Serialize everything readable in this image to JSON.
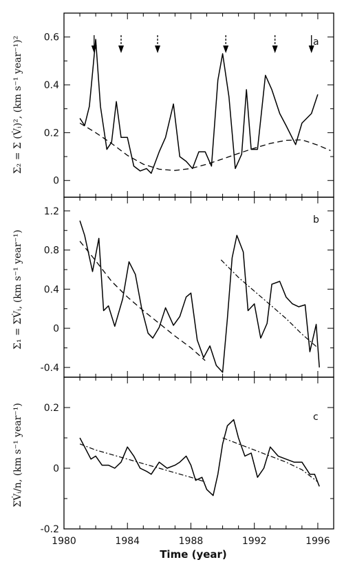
{
  "x_axis": {
    "title": "Time (year)",
    "range": [
      1980,
      1997
    ],
    "ticks": [
      1980,
      1984,
      1988,
      1992,
      1996
    ],
    "tick_labels": [
      "1980",
      "1984",
      "1988",
      "1992",
      "1996"
    ]
  },
  "chart_data": [
    {
      "type": "line",
      "panel_label": "a",
      "ylabel": "Σ₂ = Σ (V̇ᵢ)², (km s⁻¹ year⁻¹)²",
      "ylim": [
        -0.07,
        0.7
      ],
      "yticks": [
        0,
        0.2,
        0.4,
        0.6
      ],
      "ytick_labels": [
        "0",
        "0.2",
        "0.4",
        "0.6"
      ],
      "series": [
        {
          "style": "solid",
          "x": [
            1981.0,
            1981.3,
            1981.6,
            1982.0,
            1982.3,
            1982.7,
            1983.0,
            1983.3,
            1983.6,
            1984.0,
            1984.4,
            1984.8,
            1985.2,
            1985.5,
            1986.0,
            1986.4,
            1986.9,
            1987.3,
            1987.7,
            1988.1,
            1988.5,
            1988.9,
            1989.3,
            1989.7,
            1990.0,
            1990.4,
            1990.8,
            1991.2,
            1991.5,
            1991.8,
            1992.2,
            1992.7,
            1993.1,
            1993.6,
            1994.0,
            1994.6,
            1995.0,
            1995.6,
            1996.0
          ],
          "y": [
            0.26,
            0.23,
            0.31,
            0.59,
            0.31,
            0.13,
            0.16,
            0.33,
            0.18,
            0.18,
            0.06,
            0.04,
            0.05,
            0.03,
            0.12,
            0.18,
            0.32,
            0.1,
            0.08,
            0.05,
            0.12,
            0.12,
            0.06,
            0.42,
            0.53,
            0.35,
            0.05,
            0.11,
            0.38,
            0.13,
            0.13,
            0.44,
            0.38,
            0.28,
            0.23,
            0.15,
            0.24,
            0.28,
            0.36
          ]
        },
        {
          "style": "dashed",
          "x": [
            1981.0,
            1982.0,
            1983.0,
            1984.0,
            1985.0,
            1986.0,
            1987.0,
            1988.0,
            1989.0,
            1990.0,
            1991.0,
            1992.0,
            1993.0,
            1994.0,
            1995.0,
            1996.0,
            1996.8
          ],
          "y": [
            0.24,
            0.2,
            0.155,
            0.105,
            0.068,
            0.047,
            0.042,
            0.05,
            0.068,
            0.09,
            0.113,
            0.135,
            0.155,
            0.168,
            0.17,
            0.148,
            0.125
          ]
        }
      ],
      "arrows": [
        {
          "x": 1981.9,
          "style": "solid"
        },
        {
          "x": 1983.6,
          "style": "dashed"
        },
        {
          "x": 1985.9,
          "style": "dashed"
        },
        {
          "x": 1990.2,
          "style": "dashed"
        },
        {
          "x": 1993.3,
          "style": "dashed"
        },
        {
          "x": 1995.6,
          "style": "solid"
        }
      ]
    },
    {
      "type": "line",
      "panel_label": "b",
      "ylabel": "Σ₁ = ΣV̇ᵢ, (km s⁻¹ year⁻¹)",
      "ylim": [
        -0.5,
        1.34
      ],
      "yticks": [
        -0.4,
        0,
        0.4,
        0.8,
        1.2
      ],
      "ytick_labels": [
        "-0.4",
        "0",
        "0.4",
        "0.8",
        "1.2"
      ],
      "series": [
        {
          "style": "solid",
          "x": [
            1981.0,
            1981.3,
            1981.8,
            1982.2,
            1982.5,
            1982.8,
            1983.2,
            1983.7,
            1984.1,
            1984.5,
            1984.9,
            1985.3,
            1985.6,
            1986.0,
            1986.4,
            1986.9,
            1987.3,
            1987.7,
            1988.0,
            1988.4,
            1988.8,
            1989.2,
            1989.6,
            1990.0,
            1990.3,
            1990.6,
            1990.9,
            1991.3,
            1991.6,
            1992.0,
            1992.4,
            1992.8,
            1993.1,
            1993.6,
            1994.0,
            1994.4,
            1994.8,
            1995.2,
            1995.5,
            1995.9,
            1996.1
          ],
          "y": [
            1.1,
            0.95,
            0.58,
            0.92,
            0.18,
            0.23,
            0.02,
            0.3,
            0.68,
            0.55,
            0.2,
            -0.05,
            -0.1,
            0.01,
            0.21,
            0.03,
            0.12,
            0.32,
            0.36,
            -0.12,
            -0.3,
            -0.18,
            -0.38,
            -0.45,
            0.1,
            0.72,
            0.95,
            0.78,
            0.18,
            0.25,
            -0.1,
            0.05,
            0.45,
            0.48,
            0.32,
            0.25,
            0.22,
            0.24,
            -0.24,
            0.04,
            -0.4
          ]
        },
        {
          "style": "dashed",
          "x": [
            1981.0,
            1982.0,
            1983.0,
            1984.0,
            1985.0,
            1986.0,
            1987.0,
            1988.0,
            1988.9
          ],
          "y": [
            0.89,
            0.69,
            0.48,
            0.32,
            0.18,
            0.05,
            -0.08,
            -0.2,
            -0.33
          ]
        },
        {
          "style": "dashdot",
          "x": [
            1989.9,
            1991.0,
            1992.0,
            1993.0,
            1994.0,
            1995.0,
            1996.0
          ],
          "y": [
            0.7,
            0.52,
            0.38,
            0.24,
            0.1,
            -0.06,
            -0.2
          ]
        }
      ]
    },
    {
      "type": "line",
      "panel_label": "c",
      "ylabel": "ΣV̇ᵢ/n, (km s⁻¹ year⁻¹)",
      "ylim": [
        -0.2,
        0.3
      ],
      "yticks": [
        -0.2,
        0,
        0.2
      ],
      "ytick_labels": [
        "-0.2",
        "0",
        "0.2"
      ],
      "series": [
        {
          "style": "solid",
          "x": [
            1981.0,
            1981.3,
            1981.7,
            1982.0,
            1982.4,
            1982.8,
            1983.2,
            1983.6,
            1984.0,
            1984.4,
            1984.8,
            1985.2,
            1985.5,
            1986.0,
            1986.5,
            1987.0,
            1987.3,
            1987.7,
            1988.0,
            1988.3,
            1988.7,
            1989.0,
            1989.4,
            1989.7,
            1990.0,
            1990.3,
            1990.7,
            1991.0,
            1991.4,
            1991.8,
            1992.2,
            1992.6,
            1993.0,
            1993.5,
            1994.0,
            1994.5,
            1995.0,
            1995.5,
            1995.8,
            1996.1
          ],
          "y": [
            0.1,
            0.07,
            0.03,
            0.04,
            0.01,
            0.01,
            0.0,
            0.02,
            0.07,
            0.04,
            0.0,
            -0.01,
            -0.02,
            0.02,
            0.0,
            0.01,
            0.02,
            0.04,
            0.01,
            -0.04,
            -0.03,
            -0.07,
            -0.09,
            -0.02,
            0.08,
            0.14,
            0.16,
            0.1,
            0.04,
            0.05,
            -0.03,
            0.0,
            0.07,
            0.04,
            0.03,
            0.02,
            0.02,
            -0.02,
            -0.02,
            -0.06
          ]
        },
        {
          "style": "dashdot",
          "x": [
            1981.0,
            1982.0,
            1983.0,
            1984.0,
            1985.0,
            1986.0,
            1987.0,
            1988.0,
            1988.9
          ],
          "y": [
            0.08,
            0.06,
            0.045,
            0.03,
            0.015,
            0.0,
            -0.015,
            -0.03,
            -0.045
          ]
        },
        {
          "style": "dashdot",
          "x": [
            1990.0,
            1991.0,
            1992.0,
            1993.0,
            1994.0,
            1995.0,
            1996.0
          ],
          "y": [
            0.1,
            0.08,
            0.06,
            0.04,
            0.02,
            -0.005,
            -0.045
          ]
        }
      ]
    }
  ]
}
